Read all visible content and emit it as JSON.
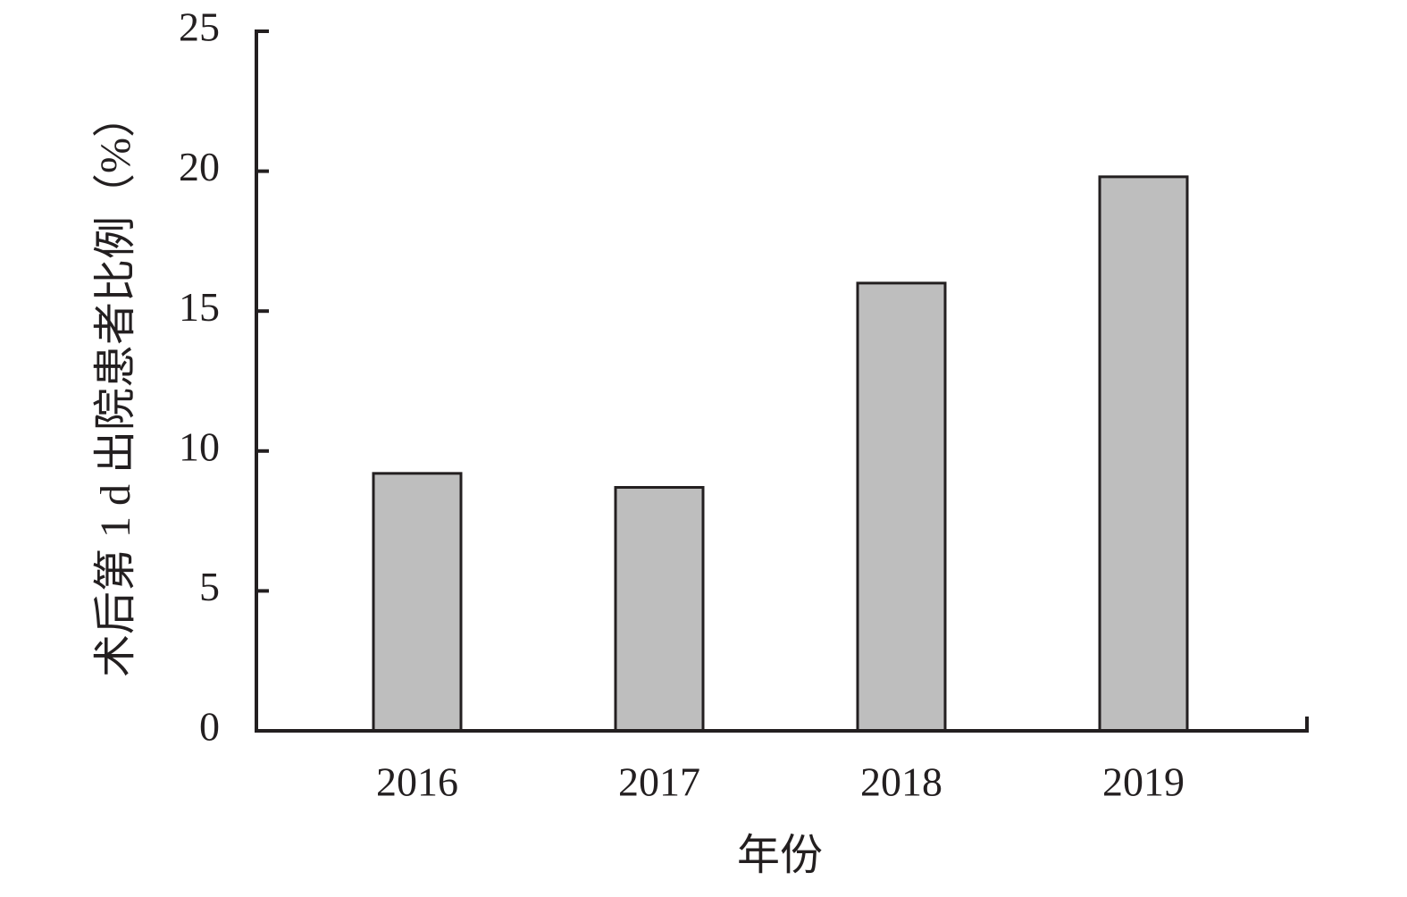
{
  "chart_data": {
    "type": "bar",
    "categories": [
      "2016",
      "2017",
      "2018",
      "2019"
    ],
    "values": [
      9.2,
      8.7,
      16.0,
      19.8
    ],
    "color": "#bebebe",
    "x_label": "年份",
    "y_label": "术后第 1 d 出院患者比例（%）",
    "ylim": [
      0,
      25
    ],
    "yticks": [
      0,
      5,
      10,
      15,
      20,
      25
    ],
    "grid": false
  }
}
